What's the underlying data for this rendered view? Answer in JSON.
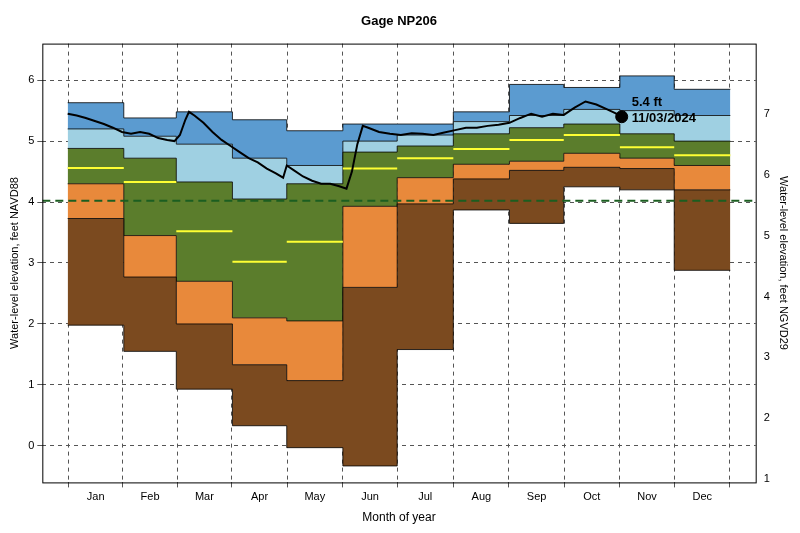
{
  "chart_data": {
    "type": "band",
    "title": "Gage NP206",
    "x_label": "Month of year",
    "y_label": "Water-level elevation, feet NAVD88",
    "y2_label": "Water-level elevation, feet NGVD29",
    "grid": true,
    "xlim": [
      -14,
      380
    ],
    "xticks": [
      {
        "value": 15.5,
        "label": "Jan"
      },
      {
        "value": 45.5,
        "label": "Feb"
      },
      {
        "value": 75.5,
        "label": "Mar"
      },
      {
        "value": 106,
        "label": "Apr"
      },
      {
        "value": 136.5,
        "label": "May"
      },
      {
        "value": 167,
        "label": "Jun"
      },
      {
        "value": 197.5,
        "label": "Jul"
      },
      {
        "value": 228.5,
        "label": "Aug"
      },
      {
        "value": 259,
        "label": "Sep"
      },
      {
        "value": 289.5,
        "label": "Oct"
      },
      {
        "value": 320,
        "label": "Nov"
      },
      {
        "value": 350.5,
        "label": "Dec"
      }
    ],
    "ylim": [
      -0.6,
      6.6
    ],
    "yticks": [
      0,
      1,
      2,
      3,
      4,
      5,
      6
    ],
    "y2lim": [
      0.95,
      8.15
    ],
    "y2ticks": [
      1,
      2,
      3,
      4,
      5,
      6,
      7
    ],
    "month_starts": [
      0,
      31,
      60,
      91,
      121,
      152,
      182,
      213,
      244,
      274,
      305,
      335,
      366
    ],
    "bands": {
      "levels": [
        [
          1.98,
          1.55,
          0.93,
          0.33,
          -0.03,
          -0.33,
          1.58,
          3.87,
          3.65,
          4.25,
          4.2,
          2.88
        ],
        [
          3.73,
          2.77,
          2.0,
          1.33,
          1.07,
          2.6,
          3.97,
          4.38,
          4.52,
          4.57,
          4.55,
          4.2
        ],
        [
          4.3,
          3.45,
          2.7,
          2.1,
          2.05,
          3.93,
          4.4,
          4.62,
          4.67,
          4.8,
          4.72,
          4.6
        ],
        [
          4.88,
          4.72,
          4.33,
          4.05,
          4.3,
          4.82,
          4.92,
          5.12,
          5.22,
          5.28,
          5.12,
          5.0
        ],
        [
          5.2,
          5.08,
          4.95,
          4.72,
          4.6,
          5.0,
          5.1,
          5.32,
          5.42,
          5.52,
          5.5,
          5.42
        ],
        [
          5.63,
          5.38,
          5.48,
          5.35,
          5.17,
          5.28,
          5.28,
          5.48,
          5.93,
          5.88,
          6.07,
          5.85
        ]
      ],
      "colors": [
        "#7b4a1f",
        "#e8893b",
        "#5b7d2c",
        "#9fd0e2",
        "#5b9bd0"
      ]
    },
    "median": {
      "color": "#ffff33",
      "values": [
        4.56,
        4.33,
        3.52,
        3.02,
        3.35,
        4.55,
        4.72,
        4.87,
        5.02,
        5.1,
        4.9,
        4.77
      ]
    },
    "reference_line": {
      "value": 4.02,
      "color": "#1b5e20",
      "line_style": "dashed"
    },
    "series": [
      {
        "color": "#000000",
        "x": [
          0,
          5,
          10,
          15,
          20,
          25,
          30,
          35,
          40,
          45,
          50,
          55,
          59,
          62,
          65,
          67,
          70,
          75,
          80,
          85,
          90,
          95,
          100,
          105,
          110,
          115,
          119,
          121,
          125,
          130,
          135,
          140,
          145,
          150,
          154,
          157,
          160,
          163,
          166,
          172,
          178,
          184,
          190,
          196,
          202,
          208,
          214,
          220,
          226,
          232,
          238,
          244,
          250,
          256,
          262,
          268,
          274,
          280,
          286,
          292,
          298,
          303,
          306
        ],
        "values": [
          5.45,
          5.42,
          5.38,
          5.33,
          5.28,
          5.22,
          5.15,
          5.12,
          5.15,
          5.12,
          5.05,
          5.02,
          5.0,
          5.1,
          5.35,
          5.48,
          5.42,
          5.3,
          5.15,
          5.02,
          4.92,
          4.82,
          4.72,
          4.65,
          4.55,
          4.47,
          4.4,
          4.6,
          4.52,
          4.42,
          4.35,
          4.3,
          4.3,
          4.26,
          4.22,
          4.5,
          4.95,
          5.25,
          5.22,
          5.15,
          5.12,
          5.1,
          5.13,
          5.12,
          5.1,
          5.14,
          5.18,
          5.22,
          5.22,
          5.25,
          5.27,
          5.3,
          5.38,
          5.45,
          5.4,
          5.45,
          5.43,
          5.55,
          5.65,
          5.6,
          5.52,
          5.45,
          5.4
        ]
      }
    ],
    "annotation": {
      "x": 306,
      "y": 5.4,
      "text": [
        "5.4 ft",
        "11/03/2024"
      ],
      "marker": "circle",
      "color": "#000000"
    }
  }
}
